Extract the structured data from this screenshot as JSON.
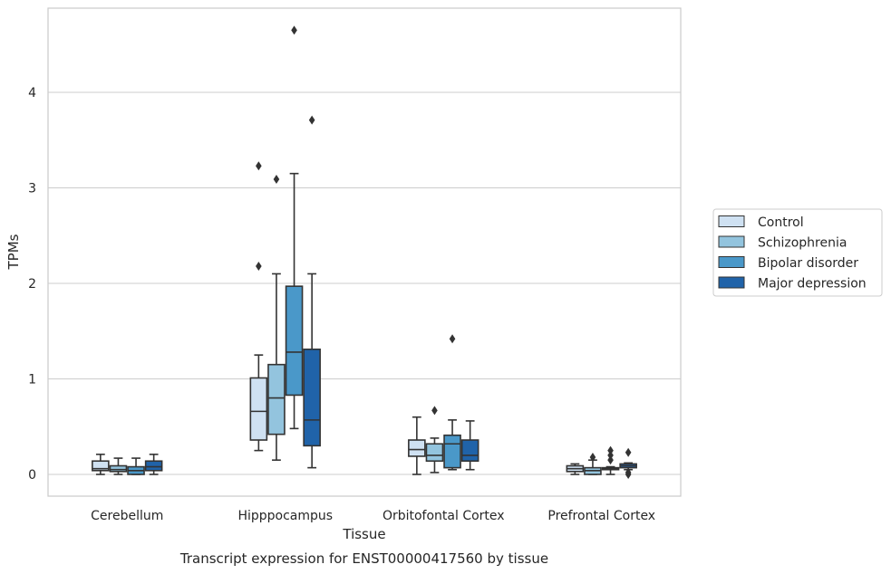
{
  "caption": "Transcript expression for ENST00000417560 by tissue",
  "chart_data": {
    "type": "box",
    "xlabel": "Tissue",
    "ylabel": "TPMs",
    "ylim": [
      -0.22,
      4.9
    ],
    "yticks": [
      0,
      1,
      2,
      3,
      4
    ],
    "grid": "horizontal",
    "legend_position": "right",
    "categories": [
      "Cerebellum",
      "Hipppocampus",
      "Orbitofontal Cortex",
      "Prefrontal Cortex"
    ],
    "series": [
      {
        "name": "Control",
        "color": "#cfe1f2",
        "boxes": [
          {
            "whisker_low": 0.0,
            "q1": 0.04,
            "median": 0.06,
            "q3": 0.14,
            "whisker_high": 0.21,
            "outliers": []
          },
          {
            "whisker_low": 0.25,
            "q1": 0.36,
            "median": 0.66,
            "q3": 1.01,
            "whisker_high": 1.25,
            "outliers": [
              2.18,
              3.23
            ]
          },
          {
            "whisker_low": 0.0,
            "q1": 0.19,
            "median": 0.26,
            "q3": 0.36,
            "whisker_high": 0.6,
            "outliers": []
          },
          {
            "whisker_low": 0.0,
            "q1": 0.03,
            "median": 0.06,
            "q3": 0.09,
            "whisker_high": 0.11,
            "outliers": []
          }
        ]
      },
      {
        "name": "Schizophrenia",
        "color": "#93c4de",
        "boxes": [
          {
            "whisker_low": 0.0,
            "q1": 0.03,
            "median": 0.05,
            "q3": 0.09,
            "whisker_high": 0.17,
            "outliers": []
          },
          {
            "whisker_low": 0.15,
            "q1": 0.42,
            "median": 0.8,
            "q3": 1.15,
            "whisker_high": 2.1,
            "outliers": [
              3.09
            ]
          },
          {
            "whisker_low": 0.02,
            "q1": 0.14,
            "median": 0.2,
            "q3": 0.32,
            "whisker_high": 0.38,
            "outliers": [
              0.67
            ]
          },
          {
            "whisker_low": 0.0,
            "q1": 0.0,
            "median": 0.04,
            "q3": 0.07,
            "whisker_high": 0.15,
            "outliers": [
              0.18
            ]
          }
        ]
      },
      {
        "name": "Bipolar disorder",
        "color": "#4a98c9",
        "boxes": [
          {
            "whisker_low": 0.0,
            "q1": 0.0,
            "median": 0.04,
            "q3": 0.08,
            "whisker_high": 0.17,
            "outliers": []
          },
          {
            "whisker_low": 0.48,
            "q1": 0.83,
            "median": 1.28,
            "q3": 1.97,
            "whisker_high": 3.15,
            "outliers": [
              4.65
            ]
          },
          {
            "whisker_low": 0.05,
            "q1": 0.07,
            "median": 0.32,
            "q3": 0.41,
            "whisker_high": 0.57,
            "outliers": [
              1.42
            ]
          },
          {
            "whisker_low": 0.0,
            "q1": 0.05,
            "median": 0.06,
            "q3": 0.07,
            "whisker_high": 0.08,
            "outliers": [
              0.15,
              0.2,
              0.25
            ]
          }
        ]
      },
      {
        "name": "Major depression",
        "color": "#2063a9",
        "boxes": [
          {
            "whisker_low": 0.0,
            "q1": 0.04,
            "median": 0.08,
            "q3": 0.14,
            "whisker_high": 0.21,
            "outliers": []
          },
          {
            "whisker_low": 0.07,
            "q1": 0.3,
            "median": 0.57,
            "q3": 1.31,
            "whisker_high": 2.1,
            "outliers": [
              3.71
            ]
          },
          {
            "whisker_low": 0.05,
            "q1": 0.14,
            "median": 0.2,
            "q3": 0.36,
            "whisker_high": 0.56,
            "outliers": []
          },
          {
            "whisker_low": 0.05,
            "q1": 0.07,
            "median": 0.09,
            "q3": 0.11,
            "whisker_high": 0.12,
            "outliers": [
              0.0,
              0.02,
              0.23
            ]
          }
        ]
      }
    ]
  }
}
